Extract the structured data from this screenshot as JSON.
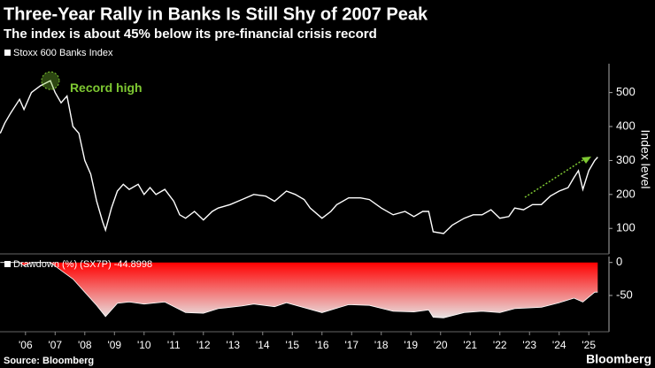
{
  "header": {
    "title": "Three-Year Rally in Banks Is Still Shy of 2007 Peak",
    "subtitle": "The index is about 45% below its pre-financial crisis record"
  },
  "footer": {
    "source": "Source: Bloomberg",
    "brand": "Bloomberg"
  },
  "chart_data": [
    {
      "type": "line",
      "y_label": "Index level",
      "annotation": "Record high",
      "xlim": [
        2005.64,
        2026.18
      ],
      "ylim": [
        25,
        585
      ],
      "yticks": [
        100,
        200,
        300,
        400,
        500
      ],
      "x": [
        2005.65,
        2005.8,
        2006.0,
        2006.3,
        2006.45,
        2006.7,
        2007.0,
        2007.34,
        2007.5,
        2007.7,
        2007.9,
        2008.1,
        2008.3,
        2008.5,
        2008.7,
        2008.9,
        2009.1,
        2009.2,
        2009.4,
        2009.6,
        2009.8,
        2010.0,
        2010.3,
        2010.5,
        2010.7,
        2010.9,
        2011.2,
        2011.5,
        2011.7,
        2011.9,
        2012.2,
        2012.5,
        2012.8,
        2013.0,
        2013.4,
        2013.8,
        2014.2,
        2014.6,
        2014.9,
        2015.3,
        2015.6,
        2015.9,
        2016.1,
        2016.5,
        2016.8,
        2017.0,
        2017.4,
        2017.8,
        2018.1,
        2018.5,
        2018.9,
        2019.3,
        2019.6,
        2019.9,
        2020.1,
        2020.25,
        2020.6,
        2020.9,
        2021.3,
        2021.6,
        2021.9,
        2022.2,
        2022.5,
        2022.8,
        2023.0,
        2023.3,
        2023.6,
        2023.9,
        2024.2,
        2024.5,
        2024.8,
        2025.0,
        2025.15,
        2025.3,
        2025.5,
        2025.7,
        2025.8
      ],
      "series": [
        {
          "name": "Stoxx 600 Banks Index",
          "color": "#ffffff",
          "values": [
            380,
            410,
            440,
            480,
            450,
            500,
            520,
            535,
            500,
            470,
            490,
            400,
            380,
            300,
            260,
            180,
            120,
            95,
            160,
            210,
            230,
            215,
            230,
            200,
            220,
            200,
            215,
            180,
            140,
            130,
            150,
            125,
            150,
            160,
            170,
            185,
            200,
            195,
            180,
            210,
            200,
            185,
            160,
            130,
            150,
            170,
            190,
            190,
            185,
            160,
            140,
            150,
            135,
            150,
            150,
            90,
            85,
            110,
            130,
            140,
            140,
            155,
            130,
            135,
            160,
            155,
            170,
            170,
            195,
            210,
            220,
            250,
            270,
            215,
            270,
            300,
            310
          ]
        }
      ]
    },
    {
      "type": "area",
      "xlim": [
        2005.64,
        2026.18
      ],
      "ylim": [
        -105,
        9
      ],
      "yticks": [
        0,
        -50
      ],
      "xticks": [
        {
          "value": 2006.5,
          "label": "'06"
        },
        {
          "value": 2007.5,
          "label": "'07"
        },
        {
          "value": 2008.5,
          "label": "'08"
        },
        {
          "value": 2009.5,
          "label": "'09"
        },
        {
          "value": 2010.5,
          "label": "'10"
        },
        {
          "value": 2011.5,
          "label": "'11"
        },
        {
          "value": 2012.5,
          "label": "'12"
        },
        {
          "value": 2013.5,
          "label": "'13"
        },
        {
          "value": 2014.5,
          "label": "'14"
        },
        {
          "value": 2015.5,
          "label": "'15"
        },
        {
          "value": 2016.5,
          "label": "'16"
        },
        {
          "value": 2017.5,
          "label": "'17"
        },
        {
          "value": 2018.5,
          "label": "'18"
        },
        {
          "value": 2019.5,
          "label": "'19"
        },
        {
          "value": 2020.5,
          "label": "'20"
        },
        {
          "value": 2021.5,
          "label": "'21"
        },
        {
          "value": 2022.5,
          "label": "'22"
        },
        {
          "value": 2023.5,
          "label": "'23"
        },
        {
          "value": 2024.5,
          "label": "'24"
        },
        {
          "value": 2025.5,
          "label": "'25"
        }
      ],
      "x": [
        2005.65,
        2006.3,
        2006.45,
        2006.7,
        2007.34,
        2007.7,
        2008.1,
        2008.5,
        2008.9,
        2009.2,
        2009.6,
        2010.0,
        2010.5,
        2011.2,
        2011.9,
        2012.5,
        2013.0,
        2013.8,
        2014.2,
        2014.9,
        2015.3,
        2016.5,
        2017.4,
        2018.1,
        2018.9,
        2019.6,
        2020.1,
        2020.25,
        2020.6,
        2021.3,
        2021.9,
        2022.5,
        2023.0,
        2023.9,
        2024.5,
        2025.0,
        2025.3,
        2025.7,
        2025.8
      ],
      "series": [
        {
          "name": "Drawdown (%) (SX7P) -44.8998",
          "color": "#ff0000",
          "values": [
            0,
            0,
            -5,
            0,
            0,
            -12,
            -25,
            -45,
            -65,
            -82,
            -62,
            -60,
            -63,
            -60,
            -76,
            -77,
            -70,
            -66,
            -63,
            -67,
            -61,
            -76,
            -64,
            -65,
            -74,
            -75,
            -72,
            -83,
            -84,
            -76,
            -74,
            -76,
            -70,
            -68,
            -61,
            -54,
            -60,
            -45,
            -44.9
          ]
        }
      ]
    }
  ]
}
